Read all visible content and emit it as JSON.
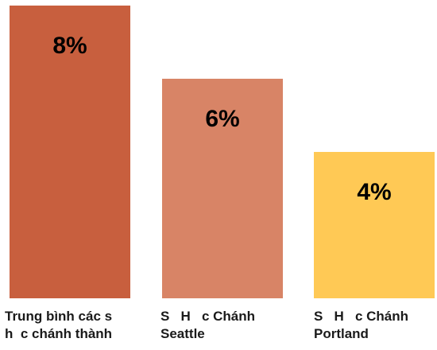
{
  "chart_data": {
    "type": "bar",
    "categories": [
      [
        "Trung bình các s",
        "h  c chánh thành"
      ],
      [
        "S   H   c Chánh",
        "Seattle"
      ],
      [
        "S   H   c Chánh",
        "Portland"
      ]
    ],
    "values": [
      8,
      6,
      4
    ],
    "value_labels": [
      "8%",
      "6%",
      "4%"
    ],
    "colors": [
      "#C85F3E",
      "#D88466",
      "#FFC955"
    ],
    "ylim": [
      0,
      8
    ],
    "grid": false,
    "legend": "none"
  }
}
